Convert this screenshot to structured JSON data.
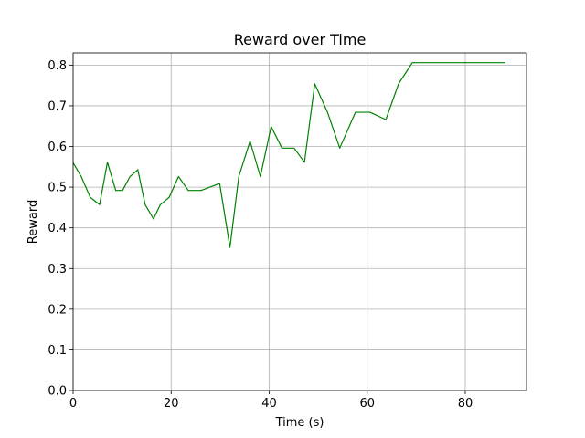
{
  "chart_data": {
    "type": "line",
    "title": "Reward over Time",
    "xlabel": "Time (s)",
    "ylabel": "Reward",
    "xlim": [
      0,
      92.5
    ],
    "ylim": [
      0.0,
      0.83
    ],
    "xticks": [
      0,
      20,
      40,
      60,
      80
    ],
    "yticks": [
      0.0,
      0.1,
      0.2,
      0.3,
      0.4,
      0.5,
      0.6,
      0.7,
      0.8
    ],
    "xtick_labels": [
      "0",
      "20",
      "40",
      "60",
      "80"
    ],
    "ytick_labels": [
      "0.0",
      "0.1",
      "0.2",
      "0.3",
      "0.4",
      "0.5",
      "0.6",
      "0.7",
      "0.8"
    ],
    "grid": true,
    "line_color": "#008000",
    "series": [
      {
        "x": [
          0,
          1.7,
          3.5,
          5.4,
          7.0,
          8.7,
          10.1,
          11.6,
          13.2,
          14.7,
          16.4,
          17.8,
          19.6,
          21.5,
          23.5,
          26.1,
          29.9,
          32.0,
          33.8,
          36.1,
          38.2,
          40.4,
          42.6,
          45.1,
          47.2,
          49.3,
          51.9,
          54.4,
          57.6,
          60.6,
          63.8,
          66.4,
          69.2,
          88.2
        ],
        "y": [
          0.56,
          0.525,
          0.475,
          0.457,
          0.561,
          0.492,
          0.492,
          0.526,
          0.543,
          0.457,
          0.422,
          0.457,
          0.475,
          0.526,
          0.492,
          0.492,
          0.509,
          0.352,
          0.526,
          0.613,
          0.526,
          0.649,
          0.596,
          0.596,
          0.561,
          0.754,
          0.684,
          0.596,
          0.684,
          0.684,
          0.666,
          0.754,
          0.806,
          0.806
        ]
      }
    ]
  }
}
